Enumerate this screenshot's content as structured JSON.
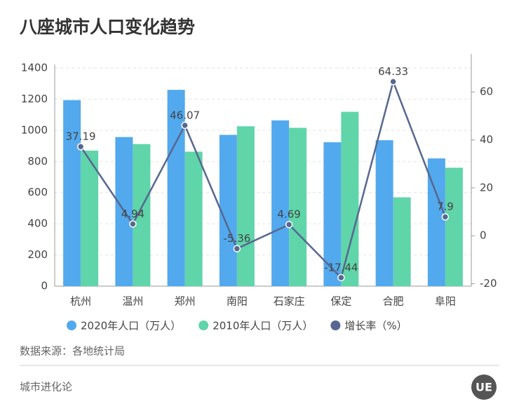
{
  "chart_data": {
    "type": "bar-line",
    "title": "八座城市人口变化趋势",
    "categories": [
      "杭州",
      "温州",
      "郑州",
      "南阳",
      "石家庄",
      "保定",
      "合肥",
      "阜阳"
    ],
    "series": [
      {
        "name": "2020年人口（万人）",
        "color": "#52a9ee",
        "type": "bar",
        "values": [
          1194,
          957,
          1260,
          971,
          1064,
          924,
          937,
          820
        ]
      },
      {
        "name": "2010年人口（万人）",
        "color": "#5fd5a9",
        "type": "bar",
        "values": [
          870,
          912,
          863,
          1026,
          1016,
          1119,
          570,
          760
        ]
      },
      {
        "name": "增长率（%）",
        "color": "#56688f",
        "type": "line",
        "axis": "y2",
        "values": [
          37.19,
          4.94,
          46.07,
          -5.36,
          4.69,
          -17.44,
          64.33,
          7.9
        ]
      }
    ],
    "ylim": [
      0,
      1400
    ],
    "yticks": [
      0,
      200,
      400,
      600,
      800,
      1000,
      1200,
      1400
    ],
    "y2lim": [
      -21,
      70
    ],
    "y2ticks": [
      -20,
      0,
      20,
      40,
      60
    ],
    "grid": true
  },
  "source": "数据来源：各地统计局",
  "footer": "城市进化论",
  "logo": "UE"
}
